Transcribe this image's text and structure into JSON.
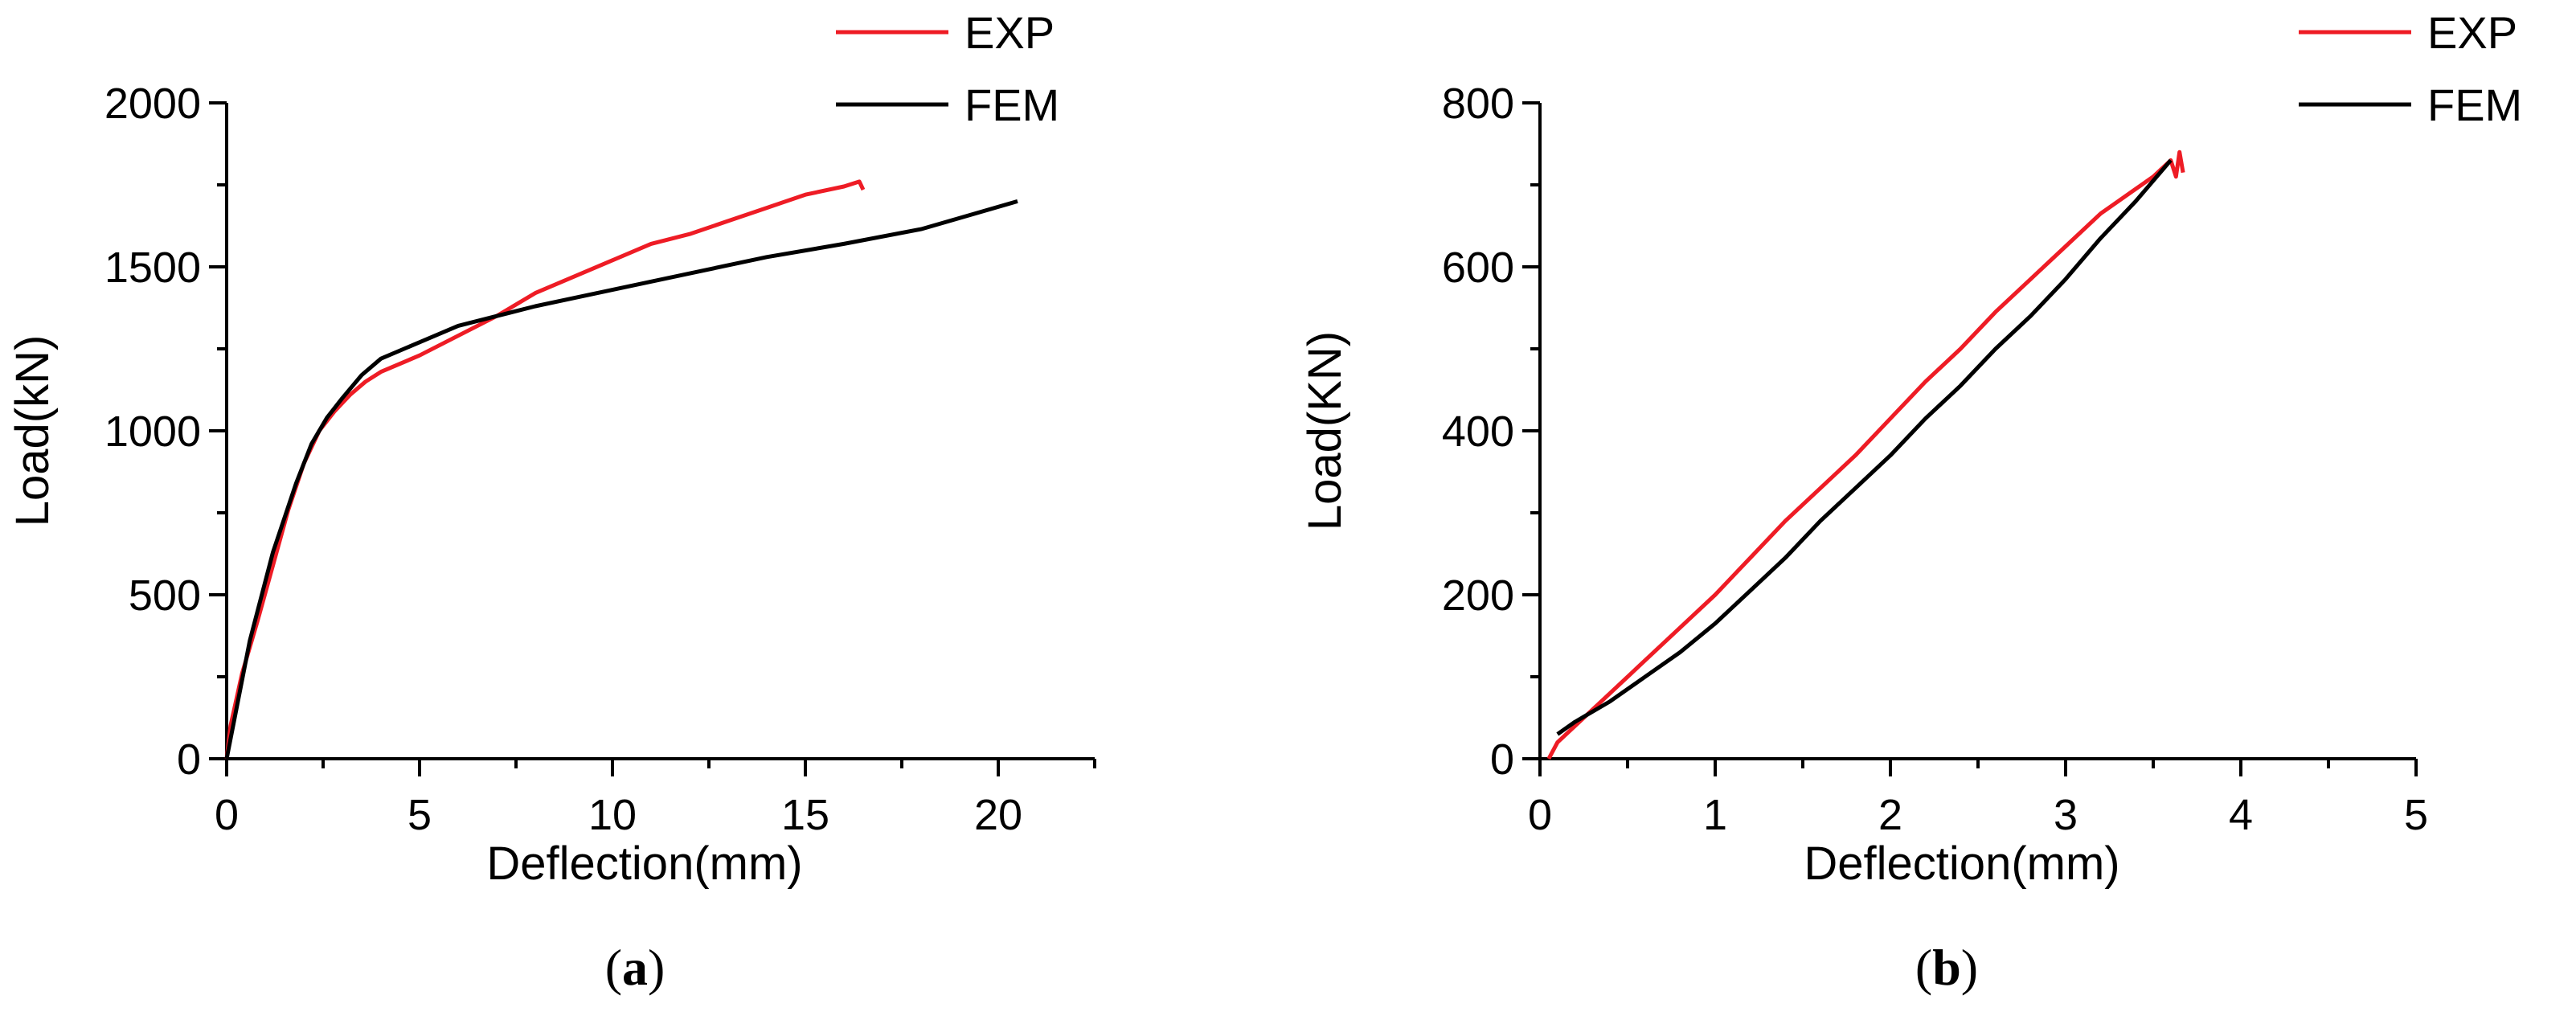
{
  "colors": {
    "exp": "#ee1c25",
    "fem": "#000000",
    "axis": "#000000",
    "background": "#ffffff"
  },
  "chart_data": [
    {
      "type": "line",
      "panel_label": "a",
      "xlabel": "Deflection(mm)",
      "ylabel": "Load(kN)",
      "xlim": [
        0,
        22.5
      ],
      "ylim": [
        0,
        2000
      ],
      "xticks": [
        0,
        5,
        10,
        15,
        20
      ],
      "yticks": [
        0,
        500,
        1000,
        1500,
        2000
      ],
      "legend_position": "top-right",
      "grid": false,
      "series": [
        {
          "name": "EXP",
          "color": "#ee1c25",
          "points": [
            [
              0,
              0
            ],
            [
              0.1,
              100
            ],
            [
              0.4,
              260
            ],
            [
              0.8,
              420
            ],
            [
              1.2,
              590
            ],
            [
              1.6,
              760
            ],
            [
              2.0,
              900
            ],
            [
              2.4,
              1000
            ],
            [
              2.8,
              1060
            ],
            [
              3.2,
              1110
            ],
            [
              3.6,
              1150
            ],
            [
              4.0,
              1180
            ],
            [
              5.0,
              1230
            ],
            [
              6.0,
              1290
            ],
            [
              7.0,
              1350
            ],
            [
              8.0,
              1420
            ],
            [
              9.0,
              1470
            ],
            [
              10.0,
              1520
            ],
            [
              11.0,
              1570
            ],
            [
              12.0,
              1600
            ],
            [
              13.0,
              1640
            ],
            [
              14.0,
              1680
            ],
            [
              15.0,
              1720
            ],
            [
              16.0,
              1745
            ],
            [
              16.4,
              1760
            ],
            [
              16.5,
              1735
            ]
          ]
        },
        {
          "name": "FEM",
          "color": "#000000",
          "points": [
            [
              0,
              0
            ],
            [
              0.6,
              360
            ],
            [
              1.2,
              630
            ],
            [
              1.8,
              840
            ],
            [
              2.2,
              960
            ],
            [
              2.6,
              1040
            ],
            [
              3.0,
              1100
            ],
            [
              3.5,
              1170
            ],
            [
              4.0,
              1220
            ],
            [
              5.0,
              1270
            ],
            [
              6.0,
              1320
            ],
            [
              7.0,
              1350
            ],
            [
              8.0,
              1380
            ],
            [
              10.0,
              1430
            ],
            [
              12.0,
              1480
            ],
            [
              14.0,
              1530
            ],
            [
              16.0,
              1570
            ],
            [
              18.0,
              1615
            ],
            [
              20.5,
              1700
            ]
          ]
        }
      ]
    },
    {
      "type": "line",
      "panel_label": "b",
      "xlabel": "Deflection(mm)",
      "ylabel": "Load(KN)",
      "xlim": [
        0,
        5
      ],
      "ylim": [
        0,
        800
      ],
      "xticks": [
        0,
        1,
        2,
        3,
        4,
        5
      ],
      "yticks": [
        0,
        200,
        400,
        600,
        800
      ],
      "legend_position": "top-right",
      "grid": false,
      "series": [
        {
          "name": "EXP",
          "color": "#ee1c25",
          "points": [
            [
              0.05,
              0
            ],
            [
              0.1,
              20
            ],
            [
              0.2,
              40
            ],
            [
              0.4,
              80
            ],
            [
              0.6,
              120
            ],
            [
              0.8,
              160
            ],
            [
              1.0,
              200
            ],
            [
              1.2,
              245
            ],
            [
              1.4,
              290
            ],
            [
              1.6,
              330
            ],
            [
              1.8,
              370
            ],
            [
              2.0,
              415
            ],
            [
              2.2,
              460
            ],
            [
              2.4,
              500
            ],
            [
              2.6,
              545
            ],
            [
              2.8,
              585
            ],
            [
              3.0,
              625
            ],
            [
              3.2,
              665
            ],
            [
              3.4,
              695
            ],
            [
              3.5,
              710
            ],
            [
              3.6,
              730
            ],
            [
              3.63,
              710
            ],
            [
              3.65,
              740
            ],
            [
              3.67,
              715
            ]
          ]
        },
        {
          "name": "FEM",
          "color": "#000000",
          "points": [
            [
              0.1,
              30
            ],
            [
              0.2,
              45
            ],
            [
              0.4,
              70
            ],
            [
              0.6,
              100
            ],
            [
              0.8,
              130
            ],
            [
              1.0,
              165
            ],
            [
              1.2,
              205
            ],
            [
              1.4,
              245
            ],
            [
              1.6,
              290
            ],
            [
              1.8,
              330
            ],
            [
              2.0,
              370
            ],
            [
              2.2,
              415
            ],
            [
              2.4,
              455
            ],
            [
              2.6,
              500
            ],
            [
              2.8,
              540
            ],
            [
              3.0,
              585
            ],
            [
              3.2,
              635
            ],
            [
              3.4,
              680
            ],
            [
              3.5,
              705
            ],
            [
              3.6,
              730
            ]
          ]
        }
      ]
    }
  ]
}
